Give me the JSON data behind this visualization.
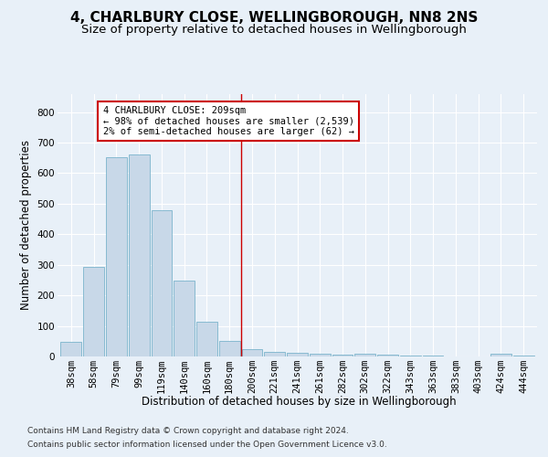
{
  "title": "4, CHARLBURY CLOSE, WELLINGBOROUGH, NN8 2NS",
  "subtitle": "Size of property relative to detached houses in Wellingborough",
  "xlabel": "Distribution of detached houses by size in Wellingborough",
  "ylabel": "Number of detached properties",
  "categories": [
    "38sqm",
    "58sqm",
    "79sqm",
    "99sqm",
    "119sqm",
    "140sqm",
    "160sqm",
    "180sqm",
    "200sqm",
    "221sqm",
    "241sqm",
    "261sqm",
    "282sqm",
    "302sqm",
    "322sqm",
    "343sqm",
    "363sqm",
    "383sqm",
    "403sqm",
    "424sqm",
    "444sqm"
  ],
  "values": [
    47,
    293,
    651,
    660,
    478,
    248,
    115,
    52,
    25,
    15,
    13,
    8,
    5,
    8,
    5,
    3,
    2,
    1,
    0,
    8,
    2
  ],
  "bar_color": "#c8d8e8",
  "bar_edge_color": "#7ab4cc",
  "annotation_text": "4 CHARLBURY CLOSE: 209sqm\n← 98% of detached houses are smaller (2,539)\n2% of semi-detached houses are larger (62) →",
  "annotation_box_color": "#ffffff",
  "annotation_border_color": "#cc0000",
  "vline_color": "#cc0000",
  "vline_x_idx": 8,
  "ylim": [
    0,
    860
  ],
  "yticks": [
    0,
    100,
    200,
    300,
    400,
    500,
    600,
    700,
    800
  ],
  "footer_line1": "Contains HM Land Registry data © Crown copyright and database right 2024.",
  "footer_line2": "Contains public sector information licensed under the Open Government Licence v3.0.",
  "background_color": "#e8f0f8",
  "plot_bg_color": "#e8f0f8",
  "grid_color": "#ffffff",
  "title_fontsize": 11,
  "subtitle_fontsize": 9.5,
  "ylabel_fontsize": 8.5,
  "xlabel_fontsize": 8.5,
  "tick_fontsize": 7.5,
  "footer_fontsize": 6.5,
  "ann_fontsize": 7.5
}
